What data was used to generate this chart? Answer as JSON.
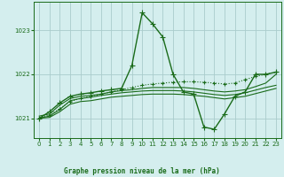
{
  "background_color": "#d4eeee",
  "grid_color": "#aacccc",
  "line_color": "#1a6b1a",
  "title": "Graphe pression niveau de la mer (hPa)",
  "xlim": [
    -0.5,
    23.5
  ],
  "ylim": [
    1020.55,
    1023.65
  ],
  "yticks": [
    1021,
    1022,
    1023
  ],
  "xticks": [
    0,
    1,
    2,
    3,
    4,
    5,
    6,
    7,
    8,
    9,
    10,
    11,
    12,
    13,
    14,
    15,
    16,
    17,
    18,
    19,
    20,
    21,
    22,
    23
  ],
  "series": [
    {
      "x": [
        0,
        1,
        2,
        3,
        4,
        5,
        6,
        7,
        8,
        9,
        10,
        11,
        12,
        13,
        14,
        15,
        16,
        17,
        18,
        19,
        20,
        21,
        22,
        23
      ],
      "y": [
        1021.0,
        1021.15,
        1021.35,
        1021.5,
        1021.55,
        1021.58,
        1021.62,
        1021.65,
        1021.68,
        1022.2,
        1023.4,
        1023.15,
        1022.85,
        1022.0,
        1021.6,
        1021.55,
        1020.8,
        1020.75,
        1021.1,
        1021.5,
        1021.6,
        1022.0,
        1022.0,
        1022.05
      ],
      "marker": "+",
      "linestyle": "-",
      "linewidth": 1.0,
      "markersize": 4
    },
    {
      "x": [
        0,
        1,
        2,
        3,
        4,
        5,
        6,
        7,
        8,
        9,
        10,
        11,
        12,
        13,
        14,
        15,
        16,
        17,
        18,
        19,
        20,
        21,
        22,
        23
      ],
      "y": [
        1021.05,
        1021.1,
        1021.3,
        1021.45,
        1021.5,
        1021.52,
        1021.55,
        1021.6,
        1021.63,
        1021.65,
        1021.68,
        1021.7,
        1021.7,
        1021.7,
        1021.7,
        1021.68,
        1021.65,
        1021.62,
        1021.6,
        1021.62,
        1021.65,
        1021.72,
        1021.8,
        1022.0
      ],
      "marker": null,
      "linestyle": "-",
      "linewidth": 0.8,
      "markersize": 0
    },
    {
      "x": [
        0,
        1,
        2,
        3,
        4,
        5,
        6,
        7,
        8,
        9,
        10,
        11,
        12,
        13,
        14,
        15,
        16,
        17,
        18,
        19,
        20,
        21,
        22,
        23
      ],
      "y": [
        1021.0,
        1021.05,
        1021.2,
        1021.4,
        1021.45,
        1021.48,
        1021.52,
        1021.55,
        1021.58,
        1021.6,
        1021.62,
        1021.63,
        1021.63,
        1021.63,
        1021.62,
        1021.6,
        1021.57,
        1021.54,
        1021.52,
        1021.54,
        1021.58,
        1021.64,
        1021.7,
        1021.75
      ],
      "marker": null,
      "linestyle": "-",
      "linewidth": 0.8,
      "markersize": 0
    },
    {
      "x": [
        0,
        1,
        2,
        3,
        4,
        5,
        6,
        7,
        8,
        9,
        10,
        11,
        12,
        13,
        14,
        15,
        16,
        17,
        18,
        19,
        20,
        21,
        22,
        23
      ],
      "y": [
        1021.0,
        1021.02,
        1021.15,
        1021.32,
        1021.38,
        1021.4,
        1021.44,
        1021.48,
        1021.5,
        1021.52,
        1021.54,
        1021.55,
        1021.55,
        1021.55,
        1021.54,
        1021.52,
        1021.5,
        1021.47,
        1021.44,
        1021.47,
        1021.5,
        1021.56,
        1021.62,
        1021.68
      ],
      "marker": null,
      "linestyle": "-",
      "linewidth": 0.8,
      "markersize": 0
    },
    {
      "x": [
        0,
        1,
        2,
        3,
        4,
        5,
        6,
        7,
        8,
        9,
        10,
        11,
        12,
        13,
        14,
        15,
        16,
        17,
        18,
        19,
        20,
        21,
        22,
        23
      ],
      "y": [
        1021.0,
        1021.08,
        1021.22,
        1021.38,
        1021.45,
        1021.5,
        1021.55,
        1021.6,
        1021.65,
        1021.7,
        1021.75,
        1021.78,
        1021.8,
        1021.82,
        1021.83,
        1021.83,
        1021.82,
        1021.8,
        1021.78,
        1021.8,
        1021.88,
        1021.95,
        1022.0,
        1022.05
      ],
      "marker": "+",
      "linestyle": ":",
      "linewidth": 0.8,
      "markersize": 3
    }
  ]
}
